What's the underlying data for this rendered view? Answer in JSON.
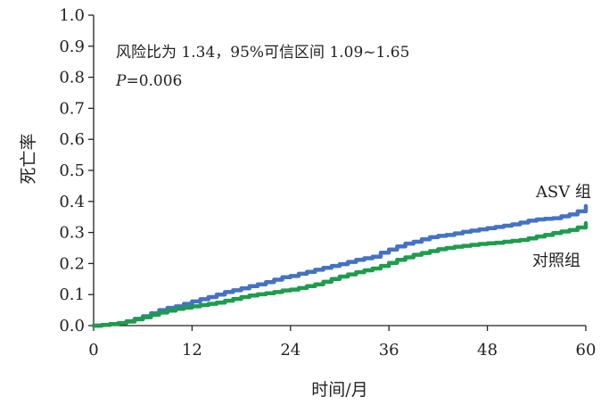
{
  "chart_data": {
    "type": "line",
    "xlabel": "时间/月",
    "ylabel": "死亡率",
    "xlim": [
      0,
      60
    ],
    "ylim": [
      0.0,
      1.0
    ],
    "xticks": [
      "0",
      "12",
      "24",
      "36",
      "48",
      "60"
    ],
    "yticks": [
      "0.0",
      "0.1",
      "0.2",
      "0.3",
      "0.4",
      "0.5",
      "0.6",
      "0.7",
      "0.8",
      "0.9",
      "1.0"
    ],
    "annotation_line1": "风险比为 1.34，95%可信区间 1.09~1.65",
    "annotation_p_label": "P",
    "annotation_p_value": "=0.006",
    "grid": false,
    "series": [
      {
        "name": "ASV 组",
        "color": "#4472c4",
        "x": [
          0,
          1,
          2,
          3,
          4,
          5,
          6,
          7,
          8,
          9,
          10,
          11,
          12,
          13,
          14,
          15,
          16,
          17,
          18,
          19,
          20,
          21,
          22,
          23,
          24,
          25,
          26,
          27,
          28,
          29,
          30,
          31,
          32,
          33,
          34,
          35,
          36,
          37,
          38,
          39,
          40,
          41,
          42,
          43,
          44,
          45,
          46,
          47,
          48,
          49,
          50,
          51,
          52,
          53,
          54,
          55,
          56,
          57,
          58,
          59,
          60
        ],
        "y": [
          0.0,
          0.002,
          0.005,
          0.008,
          0.014,
          0.022,
          0.03,
          0.04,
          0.05,
          0.057,
          0.062,
          0.07,
          0.078,
          0.085,
          0.092,
          0.1,
          0.108,
          0.114,
          0.12,
          0.127,
          0.133,
          0.14,
          0.148,
          0.156,
          0.16,
          0.167,
          0.173,
          0.18,
          0.186,
          0.192,
          0.198,
          0.205,
          0.212,
          0.217,
          0.222,
          0.235,
          0.245,
          0.255,
          0.264,
          0.27,
          0.278,
          0.285,
          0.289,
          0.292,
          0.297,
          0.302,
          0.306,
          0.31,
          0.314,
          0.318,
          0.322,
          0.326,
          0.332,
          0.338,
          0.342,
          0.344,
          0.346,
          0.352,
          0.358,
          0.368,
          0.385
        ]
      },
      {
        "name": "对照组",
        "color": "#1e9c4e",
        "x": [
          0,
          1,
          2,
          3,
          4,
          5,
          6,
          7,
          8,
          9,
          10,
          11,
          12,
          13,
          14,
          15,
          16,
          17,
          18,
          19,
          20,
          21,
          22,
          23,
          24,
          25,
          26,
          27,
          28,
          29,
          30,
          31,
          32,
          33,
          34,
          35,
          36,
          37,
          38,
          39,
          40,
          41,
          42,
          43,
          44,
          45,
          46,
          47,
          48,
          49,
          50,
          51,
          52,
          53,
          54,
          55,
          56,
          57,
          58,
          59,
          60
        ],
        "y": [
          0.0,
          0.002,
          0.005,
          0.008,
          0.013,
          0.02,
          0.027,
          0.035,
          0.042,
          0.048,
          0.054,
          0.058,
          0.062,
          0.066,
          0.07,
          0.074,
          0.08,
          0.086,
          0.092,
          0.097,
          0.101,
          0.104,
          0.108,
          0.113,
          0.116,
          0.121,
          0.127,
          0.133,
          0.141,
          0.15,
          0.158,
          0.165,
          0.172,
          0.178,
          0.184,
          0.192,
          0.202,
          0.212,
          0.22,
          0.228,
          0.234,
          0.24,
          0.246,
          0.25,
          0.254,
          0.257,
          0.26,
          0.263,
          0.265,
          0.267,
          0.27,
          0.273,
          0.276,
          0.281,
          0.287,
          0.292,
          0.298,
          0.303,
          0.308,
          0.316,
          0.33
        ]
      }
    ]
  }
}
